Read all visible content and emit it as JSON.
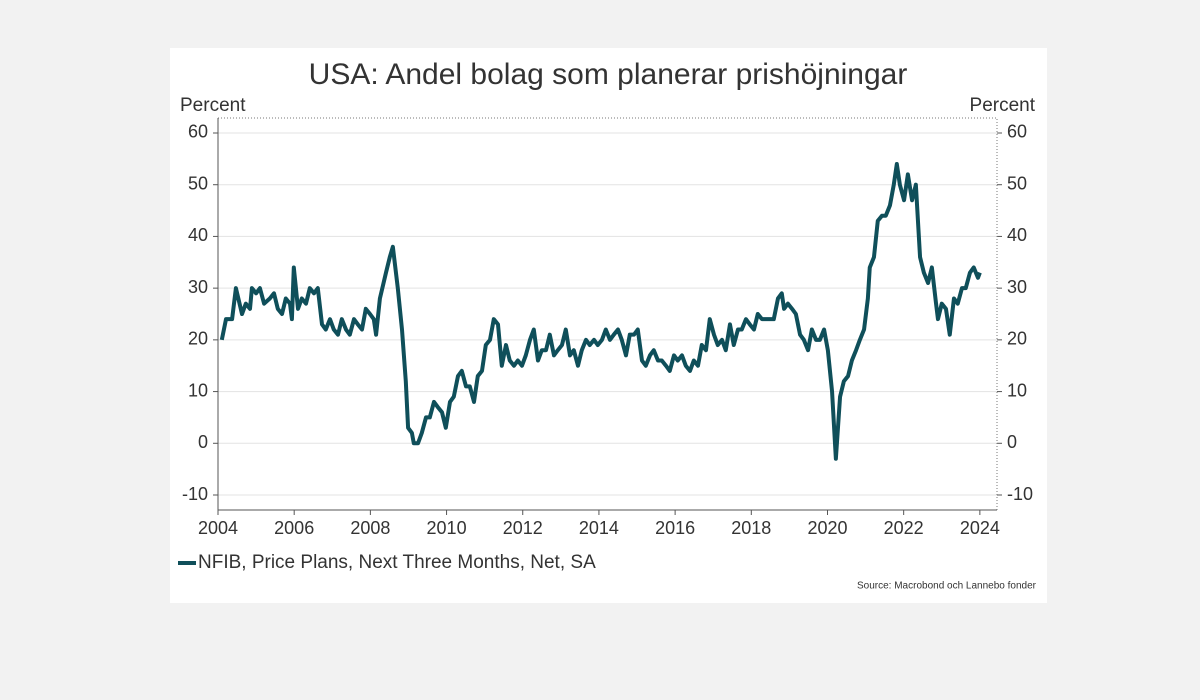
{
  "chart_data": {
    "type": "line",
    "title": "USA: Andel bolag som planerar prishöjningar",
    "y_label": "Percent",
    "y2_label": "Percent",
    "source": "Source: Macrobond och Lannebo fonder",
    "xlim": [
      2004.0,
      2024.45
    ],
    "xticks": [
      2004,
      2006,
      2008,
      2010,
      2012,
      2014,
      2016,
      2018,
      2020,
      2022,
      2024
    ],
    "ylim": [
      -12.9,
      62.9
    ],
    "yticks": [
      -10,
      0,
      10,
      20,
      30,
      40,
      50,
      60
    ],
    "y2lim": [
      -12.9,
      62.9
    ],
    "y2ticks": [
      -10,
      0,
      10,
      20,
      30,
      40,
      50,
      60
    ],
    "grid": true,
    "legend": "bottom-left",
    "series": [
      {
        "name": "NFIB, Price Plans, Next Three Months, Net, SA",
        "color": "#0f4f5a",
        "x": [
          2004.1,
          2004.21,
          2004.37,
          2004.47,
          2004.63,
          2004.73,
          2004.84,
          2004.89,
          2005.0,
          2005.1,
          2005.21,
          2005.36,
          2005.47,
          2005.57,
          2005.68,
          2005.78,
          2005.89,
          2005.94,
          2005.99,
          2006.1,
          2006.2,
          2006.31,
          2006.41,
          2006.52,
          2006.62,
          2006.73,
          2006.83,
          2006.94,
          2007.04,
          2007.15,
          2007.25,
          2007.36,
          2007.46,
          2007.57,
          2007.67,
          2007.78,
          2007.88,
          2007.99,
          2008.09,
          2008.15,
          2008.25,
          2008.41,
          2008.51,
          2008.59,
          2008.72,
          2008.83,
          2008.93,
          2008.99,
          2009.09,
          2009.14,
          2009.25,
          2009.35,
          2009.46,
          2009.56,
          2009.67,
          2009.77,
          2009.88,
          2009.98,
          2010.09,
          2010.19,
          2010.3,
          2010.4,
          2010.51,
          2010.61,
          2010.72,
          2010.82,
          2010.93,
          2011.03,
          2011.14,
          2011.24,
          2011.35,
          2011.45,
          2011.56,
          2011.66,
          2011.77,
          2011.87,
          2011.98,
          2012.08,
          2012.19,
          2012.29,
          2012.4,
          2012.5,
          2012.61,
          2012.71,
          2012.82,
          2012.92,
          2013.03,
          2013.13,
          2013.24,
          2013.34,
          2013.45,
          2013.55,
          2013.66,
          2013.76,
          2013.87,
          2013.97,
          2014.08,
          2014.18,
          2014.29,
          2014.39,
          2014.5,
          2014.6,
          2014.71,
          2014.81,
          2014.92,
          2015.02,
          2015.13,
          2015.23,
          2015.34,
          2015.44,
          2015.55,
          2015.65,
          2015.76,
          2015.86,
          2015.97,
          2016.07,
          2016.18,
          2016.28,
          2016.39,
          2016.49,
          2016.6,
          2016.7,
          2016.81,
          2016.91,
          2017.02,
          2017.12,
          2017.23,
          2017.33,
          2017.44,
          2017.54,
          2017.65,
          2017.75,
          2017.86,
          2017.96,
          2018.07,
          2018.17,
          2018.28,
          2018.38,
          2018.49,
          2018.59,
          2018.7,
          2018.8,
          2018.86,
          2018.96,
          2019.07,
          2019.17,
          2019.28,
          2019.38,
          2019.49,
          2019.59,
          2019.7,
          2019.8,
          2019.91,
          2020.01,
          2020.12,
          2020.22,
          2020.33,
          2020.43,
          2020.54,
          2020.64,
          2020.75,
          2020.85,
          2020.96,
          2021.06,
          2021.11,
          2021.22,
          2021.32,
          2021.43,
          2021.53,
          2021.64,
          2021.74,
          2021.82,
          2021.9,
          2022.01,
          2022.11,
          2022.22,
          2022.32,
          2022.43,
          2022.53,
          2022.64,
          2022.74,
          2022.85,
          2022.9,
          2023.0,
          2023.11,
          2023.21,
          2023.32,
          2023.42,
          2023.53,
          2023.63,
          2023.74,
          2023.84,
          2023.95,
          2024.0
        ],
        "values": [
          20,
          24,
          24,
          30,
          25,
          27,
          26,
          30,
          29,
          30,
          27,
          28,
          29,
          26,
          25,
          28,
          27,
          24,
          34,
          26,
          28,
          27,
          30,
          29,
          30,
          23,
          22,
          24,
          22,
          21,
          24,
          22,
          21,
          24,
          23,
          22,
          26,
          25,
          24,
          21,
          28,
          33,
          36,
          38,
          30,
          22,
          12,
          3,
          2,
          0,
          0,
          2,
          5,
          5,
          8,
          7,
          6,
          3,
          8,
          9,
          13,
          14,
          11,
          11,
          8,
          13,
          14,
          19,
          20,
          24,
          23,
          15,
          19,
          16,
          15,
          16,
          15,
          17,
          20,
          22,
          16,
          18,
          18,
          21,
          17,
          18,
          19,
          22,
          17,
          18,
          15,
          18,
          20,
          19,
          20,
          19,
          20,
          22,
          20,
          21,
          22,
          20,
          17,
          21,
          21,
          22,
          16,
          15,
          17,
          18,
          16,
          16,
          15,
          14,
          17,
          16,
          17,
          15,
          14,
          16,
          15,
          19,
          18,
          24,
          21,
          19,
          20,
          18,
          23,
          19,
          22,
          22,
          24,
          23,
          22,
          25,
          24,
          24,
          24,
          24,
          28,
          29,
          26,
          27,
          26,
          25,
          21,
          20,
          18,
          22,
          20,
          20,
          22,
          18,
          10,
          -3,
          9,
          12,
          13,
          16,
          18,
          20,
          22,
          28,
          34,
          36,
          43,
          44,
          44,
          46,
          50,
          54,
          50,
          47,
          52,
          47,
          50,
          36,
          33,
          31,
          34,
          27,
          24,
          27,
          26,
          21,
          28,
          27,
          30,
          30,
          33,
          34,
          32,
          33
        ]
      }
    ]
  }
}
